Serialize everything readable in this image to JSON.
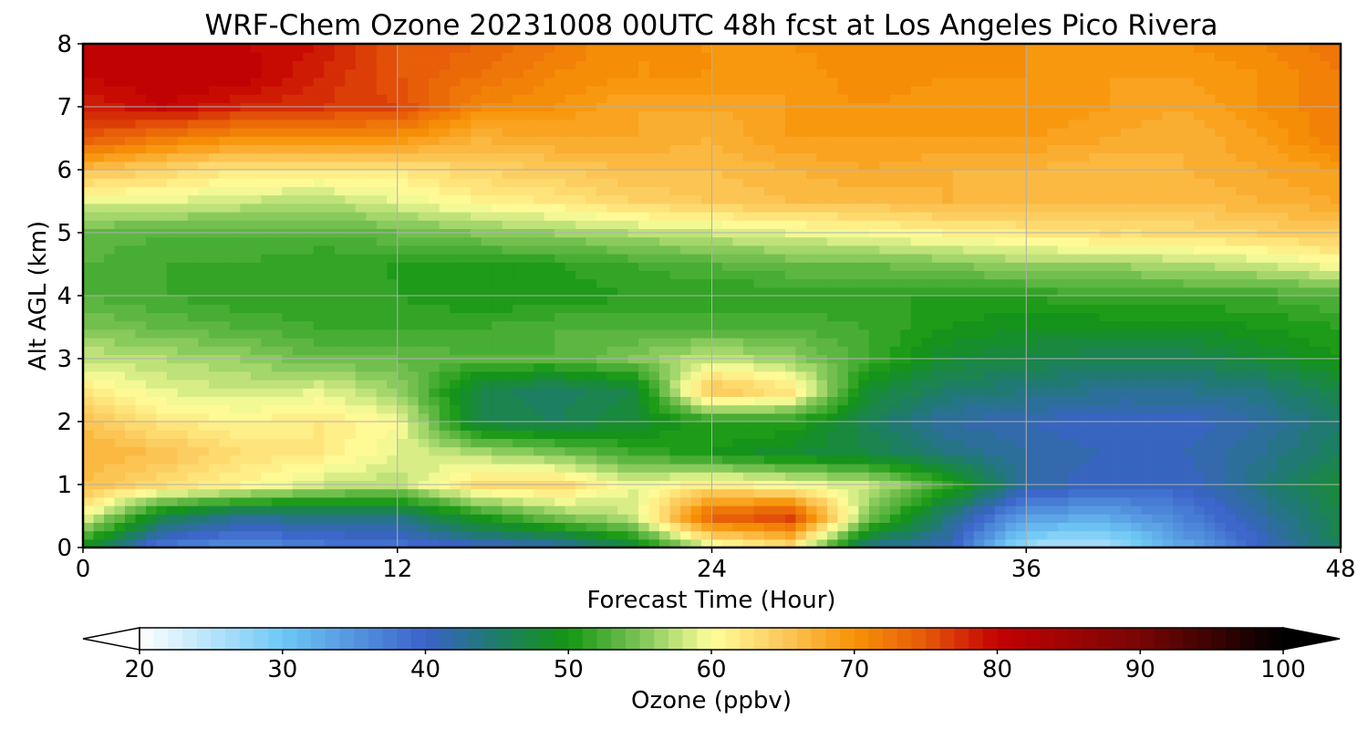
{
  "chart_data": {
    "type": "heatmap",
    "title": "WRF-Chem Ozone  20231008 00UTC 48h fcst at Los Angeles Pico Rivera",
    "xlabel": "Forecast Time (Hour)",
    "ylabel": "Alt AGL (km)",
    "xlim": [
      0,
      48
    ],
    "ylim": [
      0,
      8
    ],
    "x_ticks": [
      "0",
      "12",
      "24",
      "36",
      "48"
    ],
    "y_ticks": [
      "0",
      "1",
      "2",
      "3",
      "4",
      "5",
      "6",
      "7",
      "8"
    ],
    "grid": true,
    "x": [
      0,
      3,
      6,
      9,
      12,
      15,
      18,
      21,
      24,
      27,
      30,
      33,
      36,
      39,
      42,
      45,
      48
    ],
    "y": [
      0,
      0.5,
      1,
      1.5,
      2,
      2.5,
      3,
      3.5,
      4,
      4.5,
      5,
      5.5,
      6,
      6.5,
      7,
      7.5,
      8
    ],
    "z": [
      [
        49,
        37,
        35,
        37,
        38,
        40,
        41,
        47,
        58,
        62,
        43,
        41,
        26,
        25,
        33,
        40,
        46
      ],
      [
        60,
        47,
        43,
        44,
        44,
        50,
        55,
        58,
        75,
        77,
        55,
        44,
        34,
        33,
        37,
        42,
        47
      ],
      [
        66,
        63,
        61,
        58,
        57,
        63,
        64,
        59,
        62,
        60,
        58,
        52,
        42,
        40,
        40,
        44,
        48
      ],
      [
        67,
        66,
        63,
        62,
        59,
        57,
        55,
        52,
        50,
        48,
        47,
        44,
        42,
        41,
        41,
        43,
        46
      ],
      [
        66,
        62,
        61,
        62,
        60,
        47,
        46,
        48,
        51,
        51,
        46,
        42,
        41,
        40,
        40,
        42,
        45
      ],
      [
        62,
        59,
        58,
        59,
        56,
        47,
        45,
        47,
        66,
        63,
        48,
        45,
        44,
        43,
        43,
        44,
        47
      ],
      [
        58,
        57,
        56,
        54,
        54,
        53,
        53,
        55,
        58,
        56,
        52,
        48,
        47,
        46,
        46,
        48,
        50
      ],
      [
        55,
        54,
        53,
        52,
        52,
        52,
        53,
        53,
        53,
        53,
        52,
        50,
        49,
        49,
        49,
        50,
        51
      ],
      [
        53,
        52,
        51,
        51,
        51,
        50,
        50,
        51,
        51,
        51,
        51,
        51,
        51,
        52,
        52,
        52,
        53
      ],
      [
        53,
        52,
        52,
        51,
        51,
        51,
        51,
        52,
        53,
        54,
        54,
        55,
        56,
        56,
        57,
        58,
        60
      ],
      [
        54,
        53,
        53,
        53,
        54,
        55,
        56,
        57,
        58,
        59,
        60,
        61,
        62,
        63,
        63,
        64,
        65
      ],
      [
        59,
        59,
        58,
        57,
        59,
        61,
        62,
        64,
        65,
        66,
        66,
        67,
        66,
        66,
        66,
        67,
        68
      ],
      [
        66,
        64,
        62,
        62,
        62,
        64,
        65,
        66,
        66,
        67,
        68,
        67,
        67,
        66,
        67,
        68,
        69
      ],
      [
        75,
        72,
        70,
        70,
        70,
        67,
        68,
        68,
        67,
        69,
        69,
        69,
        69,
        68,
        67,
        69,
        72
      ],
      [
        78,
        80,
        78,
        77,
        76,
        71,
        70,
        68,
        68,
        69,
        70,
        69,
        70,
        69,
        68,
        70,
        72
      ],
      [
        80,
        81,
        81,
        78,
        75,
        73,
        71,
        70,
        70,
        69,
        71,
        70,
        70,
        69,
        69,
        70,
        72
      ],
      [
        80,
        80,
        80,
        79,
        75,
        74,
        72,
        70,
        70,
        70,
        71,
        71,
        70,
        69,
        70,
        71,
        73
      ]
    ],
    "colorbar": {
      "label": "Ozone  (ppbv)",
      "min": 20,
      "max": 100,
      "ticks": [
        "20",
        "30",
        "40",
        "50",
        "60",
        "70",
        "80",
        "90",
        "100"
      ],
      "extend": "both",
      "stops": [
        [
          20,
          "#ffffff"
        ],
        [
          30,
          "#6ec8f5"
        ],
        [
          40,
          "#3a62c9"
        ],
        [
          45,
          "#1e7c6a"
        ],
        [
          50,
          "#149611"
        ],
        [
          55,
          "#7cc456"
        ],
        [
          60,
          "#ffff9b"
        ],
        [
          65,
          "#fcc95a"
        ],
        [
          70,
          "#f79307"
        ],
        [
          75,
          "#e65809"
        ],
        [
          80,
          "#c40202"
        ],
        [
          90,
          "#780505"
        ],
        [
          100,
          "#000000"
        ]
      ]
    }
  }
}
